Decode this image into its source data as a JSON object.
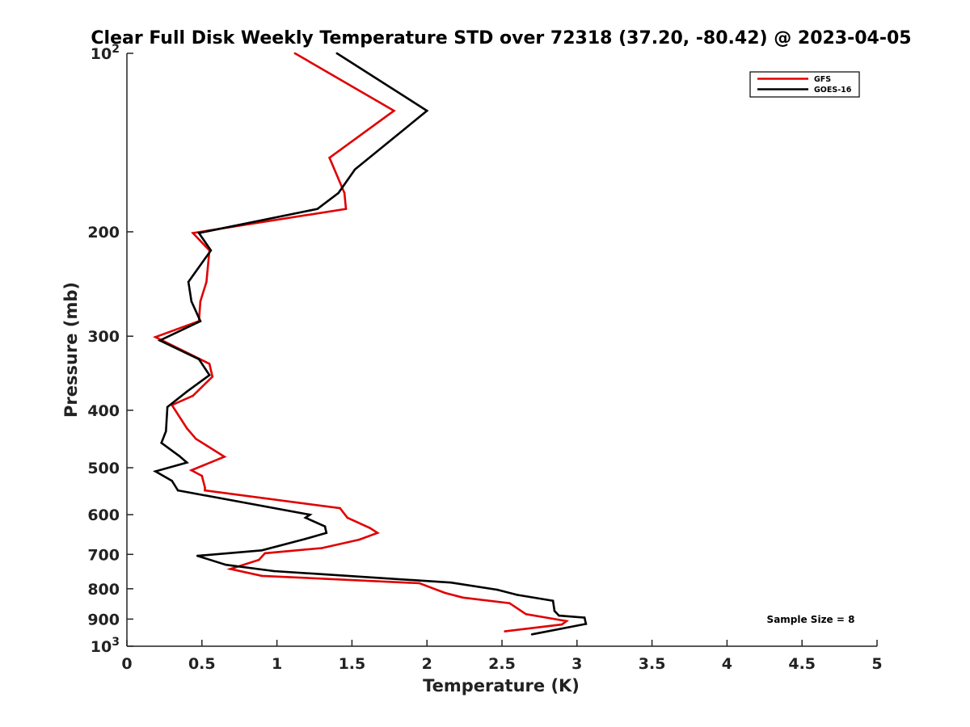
{
  "chart_data": {
    "type": "line",
    "title": "Clear Full Disk Weekly Temperature STD over 72318 (37.20, -80.42) @ 2023-04-05",
    "xlabel": "Temperature (K)",
    "ylabel": "Pressure (mb)",
    "xlim": [
      0,
      5
    ],
    "ylim": [
      100,
      1000
    ],
    "y_scale": "log",
    "y_reversed": true,
    "x_ticks": [
      "0",
      "0.5",
      "1",
      "1.5",
      "2",
      "2.5",
      "3",
      "3.5",
      "4",
      "4.5",
      "5"
    ],
    "y_ticks": [
      {
        "value": 100,
        "base": "10",
        "exp": "2"
      },
      {
        "value": 200,
        "label": "200"
      },
      {
        "value": 300,
        "label": "300"
      },
      {
        "value": 400,
        "label": "400"
      },
      {
        "value": 500,
        "label": "500"
      },
      {
        "value": 600,
        "label": "600"
      },
      {
        "value": 700,
        "label": "700"
      },
      {
        "value": 800,
        "label": "800"
      },
      {
        "value": 900,
        "label": "900"
      },
      {
        "value": 1000,
        "base": "10",
        "exp": "3"
      }
    ],
    "grid": false,
    "legend_position": "top-right",
    "annotation": "Sample Size = 8",
    "series": [
      {
        "name": "GFS",
        "color": "#e00000",
        "points": [
          [
            1.12,
            100
          ],
          [
            1.78,
            125
          ],
          [
            1.35,
            150
          ],
          [
            1.45,
            172
          ],
          [
            1.46,
            183
          ],
          [
            0.44,
            201
          ],
          [
            0.55,
            215
          ],
          [
            0.53,
            243
          ],
          [
            0.49,
            262
          ],
          [
            0.48,
            283
          ],
          [
            0.19,
            301
          ],
          [
            0.55,
            334
          ],
          [
            0.57,
            351
          ],
          [
            0.44,
            378
          ],
          [
            0.3,
            392
          ],
          [
            0.4,
            429
          ],
          [
            0.46,
            447
          ],
          [
            0.65,
            479
          ],
          [
            0.43,
            505
          ],
          [
            0.5,
            516
          ],
          [
            0.52,
            540
          ],
          [
            0.52,
            546
          ],
          [
            1.42,
            585
          ],
          [
            1.47,
            607
          ],
          [
            1.62,
            632
          ],
          [
            1.67,
            644
          ],
          [
            1.55,
            661
          ],
          [
            1.3,
            683
          ],
          [
            0.92,
            697
          ],
          [
            0.88,
            715
          ],
          [
            0.69,
            741
          ],
          [
            0.9,
            761
          ],
          [
            1.95,
            783
          ],
          [
            2.12,
            813
          ],
          [
            2.24,
            828
          ],
          [
            2.55,
            846
          ],
          [
            2.66,
            883
          ],
          [
            2.93,
            907
          ],
          [
            2.9,
            919
          ],
          [
            2.52,
            944
          ]
        ]
      },
      {
        "name": "GOES-16",
        "color": "#000000",
        "points": [
          [
            1.4,
            100
          ],
          [
            2.0,
            125
          ],
          [
            1.52,
            157
          ],
          [
            1.41,
            172
          ],
          [
            1.27,
            183
          ],
          [
            0.48,
            201
          ],
          [
            0.56,
            215
          ],
          [
            0.41,
            243
          ],
          [
            0.43,
            262
          ],
          [
            0.49,
            283
          ],
          [
            0.22,
            305
          ],
          [
            0.48,
            328
          ],
          [
            0.55,
            349
          ],
          [
            0.4,
            372
          ],
          [
            0.27,
            395
          ],
          [
            0.26,
            434
          ],
          [
            0.23,
            454
          ],
          [
            0.35,
            478
          ],
          [
            0.4,
            490
          ],
          [
            0.19,
            507
          ],
          [
            0.3,
            526
          ],
          [
            0.34,
            546
          ],
          [
            1.22,
            600
          ],
          [
            1.19,
            607
          ],
          [
            1.32,
            628
          ],
          [
            1.33,
            644
          ],
          [
            1.19,
            659
          ],
          [
            0.9,
            689
          ],
          [
            0.47,
            704
          ],
          [
            0.66,
            729
          ],
          [
            0.98,
            747
          ],
          [
            2.16,
            781
          ],
          [
            2.47,
            803
          ],
          [
            2.6,
            819
          ],
          [
            2.84,
            838
          ],
          [
            2.85,
            872
          ],
          [
            2.88,
            888
          ],
          [
            3.05,
            895
          ],
          [
            3.06,
            917
          ],
          [
            2.7,
            955
          ]
        ]
      }
    ]
  }
}
